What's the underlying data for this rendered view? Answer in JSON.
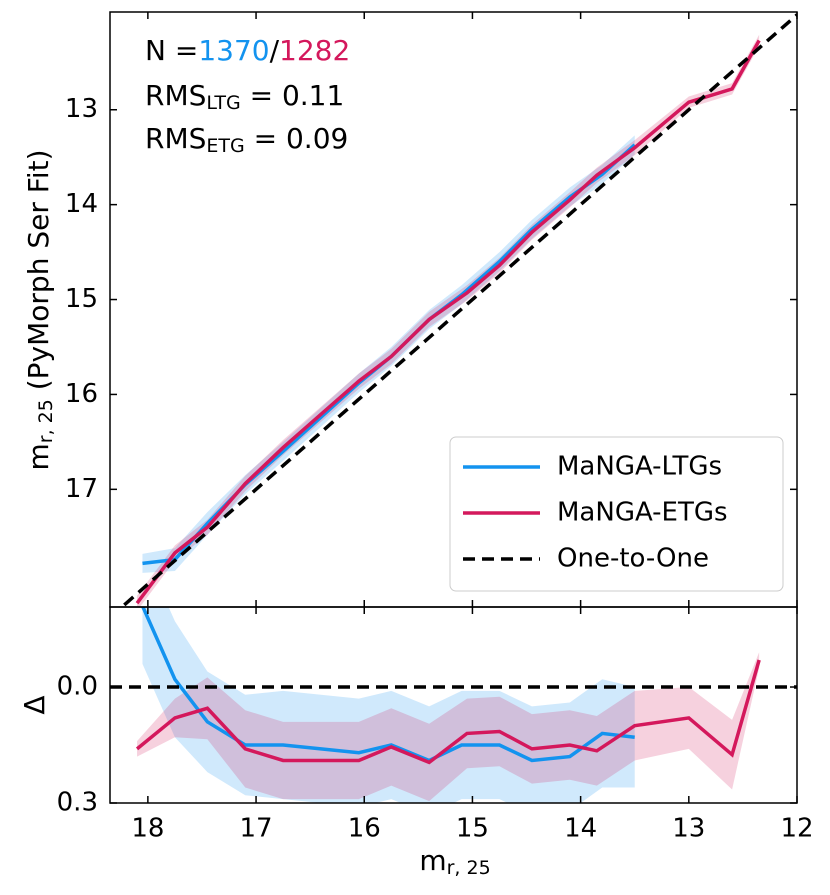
{
  "chart_data": [
    {
      "type": "line",
      "ylabel": {
        "main": "m",
        "sub": "r, 25",
        "rest": " (PyMorph Ser Fit)"
      },
      "annotations": [
        {
          "parts": [
            "N =",
            "1370",
            "/",
            "1282"
          ]
        },
        {
          "parts": [
            "RMS",
            "LTG",
            " = 0.11"
          ]
        },
        {
          "parts": [
            "RMS",
            "ETG",
            " = 0.09"
          ]
        }
      ],
      "xlim": [
        18.35,
        12
      ],
      "xticks": [
        18,
        17,
        16,
        15,
        14,
        13,
        12
      ],
      "ylim": [
        18.24,
        11.97
      ],
      "yticks": [
        13,
        14,
        15,
        16,
        17
      ],
      "legend": "lower right",
      "series": [
        {
          "name": "MaNGA-LTGs",
          "color": "#1393ef",
          "x": [
            18.05,
            17.75,
            17.45,
            17.1,
            16.75,
            16.4,
            16.05,
            15.75,
            15.4,
            15.1,
            14.75,
            14.45,
            14.1,
            13.8,
            13.5
          ],
          "values": [
            17.78,
            17.74,
            17.36,
            16.95,
            16.6,
            16.24,
            15.88,
            15.6,
            15.21,
            14.95,
            14.6,
            14.26,
            13.92,
            13.68,
            13.37
          ],
          "errors": [
            0.1,
            0.12,
            0.12,
            0.1,
            0.1,
            0.1,
            0.1,
            0.1,
            0.1,
            0.1,
            0.1,
            0.1,
            0.1,
            0.1,
            0.1
          ]
        },
        {
          "name": "MaNGA-ETGs",
          "color": "#d4185c",
          "x": [
            18.1,
            17.75,
            17.45,
            17.1,
            16.75,
            16.4,
            16.05,
            15.75,
            15.4,
            15.05,
            14.75,
            14.45,
            14.1,
            13.85,
            13.5,
            13.0,
            12.6,
            12.35
          ],
          "values": [
            18.2,
            17.67,
            17.4,
            16.94,
            16.56,
            16.21,
            15.86,
            15.6,
            15.21,
            14.93,
            14.64,
            14.29,
            13.95,
            13.69,
            13.4,
            12.92,
            12.78,
            12.27
          ],
          "errors": [
            0.08,
            0.08,
            0.08,
            0.08,
            0.08,
            0.08,
            0.08,
            0.08,
            0.08,
            0.08,
            0.08,
            0.08,
            0.08,
            0.08,
            0.08,
            0.06,
            0.06,
            0.06
          ]
        }
      ],
      "reference_line": {
        "name": "One-to-One",
        "color": "#000000",
        "x": [
          18.35,
          12
        ],
        "values": [
          18.35,
          12
        ]
      }
    },
    {
      "type": "line",
      "xlabel": {
        "main": "m",
        "sub": "r, 25"
      },
      "ylabel": {
        "main": "Δ"
      },
      "xlim": [
        18.35,
        12
      ],
      "xticks": [
        18,
        17,
        16,
        15,
        14,
        13,
        12
      ],
      "ylim": [
        0.3,
        -0.207
      ],
      "yticks": [
        {
          "value": 0,
          "label": "0.0"
        },
        0.3
      ],
      "series": [
        {
          "name": "MaNGA-LTGs",
          "color": "#1393ef",
          "x": [
            18.05,
            17.75,
            17.45,
            17.1,
            16.75,
            16.4,
            16.05,
            15.75,
            15.4,
            15.1,
            14.75,
            14.45,
            14.1,
            13.8,
            13.5
          ],
          "values": [
            -0.21,
            -0.02,
            0.09,
            0.15,
            0.15,
            0.16,
            0.17,
            0.15,
            0.19,
            0.15,
            0.15,
            0.19,
            0.18,
            0.12,
            0.13
          ],
          "errors": [
            0.15,
            0.15,
            0.13,
            0.13,
            0.14,
            0.14,
            0.14,
            0.14,
            0.14,
            0.14,
            0.14,
            0.14,
            0.14,
            0.14,
            0.13
          ]
        },
        {
          "name": "MaNGA-ETGs",
          "color": "#d4185c",
          "x": [
            18.1,
            17.75,
            17.45,
            17.1,
            16.75,
            16.4,
            16.05,
            15.75,
            15.4,
            15.05,
            14.75,
            14.45,
            14.1,
            13.85,
            13.5,
            13.0,
            12.6,
            12.35
          ],
          "values": [
            0.16,
            0.08,
            0.055,
            0.16,
            0.19,
            0.19,
            0.19,
            0.155,
            0.195,
            0.12,
            0.115,
            0.16,
            0.15,
            0.165,
            0.1,
            0.08,
            0.175,
            -0.07
          ],
          "errors": [
            0.02,
            0.05,
            0.08,
            0.1,
            0.1,
            0.1,
            0.1,
            0.1,
            0.1,
            0.09,
            0.09,
            0.09,
            0.09,
            0.09,
            0.09,
            0.08,
            0.09,
            0.02
          ]
        }
      ],
      "hline": {
        "value": 0,
        "color": "#000000"
      }
    }
  ]
}
